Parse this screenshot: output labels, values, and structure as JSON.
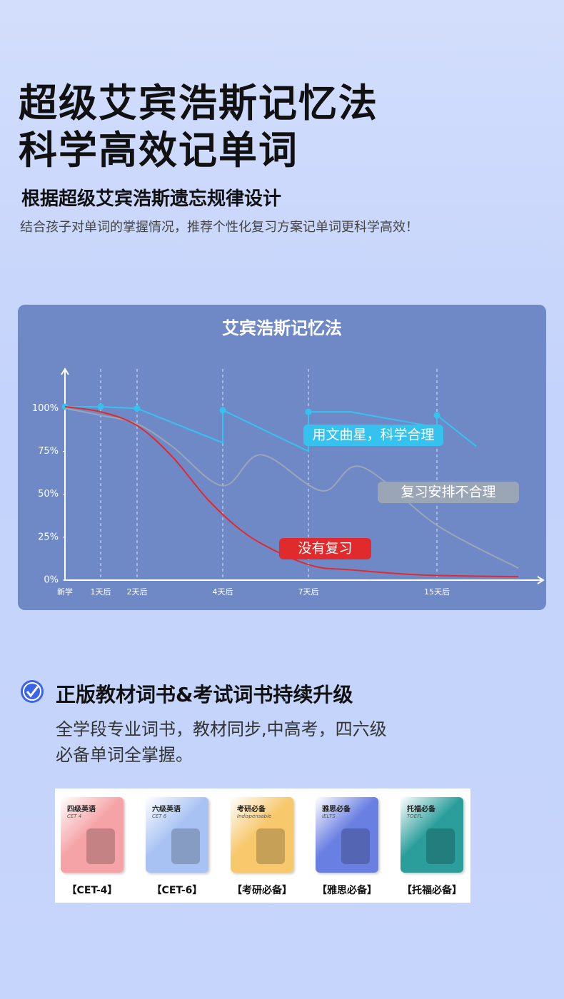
{
  "header": {
    "title_lines": [
      "超级艾宾浩斯记忆法",
      "科学高效记单词"
    ],
    "subtitle": "根据超级艾宾浩斯遗忘规律设计",
    "description": "结合孩子对单词的掌握情况，推荐个性化复习方案记单词更科学高效！"
  },
  "chart_data": {
    "type": "line",
    "title": "艾宾浩斯记忆法",
    "xlim": [
      0,
      13
    ],
    "xticks": [
      {
        "value": 0,
        "label": "新学"
      },
      {
        "value": 1,
        "label": "1天后"
      },
      {
        "value": 2.02,
        "label": "2天后"
      },
      {
        "value": 4.42,
        "label": "4天后"
      },
      {
        "value": 6.82,
        "label": "7天后"
      },
      {
        "value": 10.42,
        "label": "15天后"
      }
    ],
    "ylim": [
      0,
      123
    ],
    "yticks": [
      {
        "value": 0,
        "label": "0%"
      },
      {
        "value": 25,
        "label": "25%"
      },
      {
        "value": 50,
        "label": "50%"
      },
      {
        "value": 75,
        "label": "75%"
      },
      {
        "value": 100,
        "label": "100%"
      }
    ],
    "grid": true,
    "series": [
      {
        "name": "用文曲星，科学合理",
        "color": "#36c2ee",
        "smooth": false,
        "x": [
          0,
          1,
          2.02,
          4.42,
          4.42,
          6.82,
          6.82,
          8,
          10.42,
          10.42,
          11.52
        ],
        "values": [
          101,
          101,
          100,
          80,
          99,
          75,
          98,
          98,
          89,
          96,
          78
        ]
      },
      {
        "name": "复习安排不合理",
        "color": "#9aa6b6",
        "smooth": true,
        "x": [
          0,
          1,
          2.02,
          3,
          4.42,
          5.5,
          7.2,
          8.3,
          10.42,
          12.7
        ],
        "values": [
          100,
          96,
          91,
          78,
          55,
          73,
          52,
          66,
          32,
          7
        ]
      },
      {
        "name": "没有复习",
        "color": "#e02a2c",
        "smooth": true,
        "x": [
          0,
          1,
          2.02,
          3,
          4,
          5,
          6,
          7,
          8,
          10,
          12.7
        ],
        "values": [
          101,
          98,
          90,
          72,
          47,
          28,
          16,
          8,
          6,
          3,
          2
        ]
      }
    ]
  },
  "feature": {
    "title": "正版教材词书&考试词书持续升级",
    "body_lines": [
      "全学段专业词书，教材同步,中高考，四六级",
      "必备单词全掌握。"
    ]
  },
  "books": [
    {
      "cover_title": "四级英语",
      "cover_sub": "CET 4",
      "label": "【CET-4】",
      "color": "#f5a3a6"
    },
    {
      "cover_title": "六级英语",
      "cover_sub": "CET 6",
      "label": "【CET-6】",
      "color": "#a8c3f3"
    },
    {
      "cover_title": "考研必备",
      "cover_sub": "Indispensable",
      "label": "【考研必备】",
      "color": "#f7c86c"
    },
    {
      "cover_title": "雅思必备",
      "cover_sub": "IELTS",
      "label": "【雅思必备】",
      "color": "#6a7fe2"
    },
    {
      "cover_title": "托福必备",
      "cover_sub": "TOEFL",
      "label": "【托福必备】",
      "color": "#2b9e9c"
    }
  ]
}
